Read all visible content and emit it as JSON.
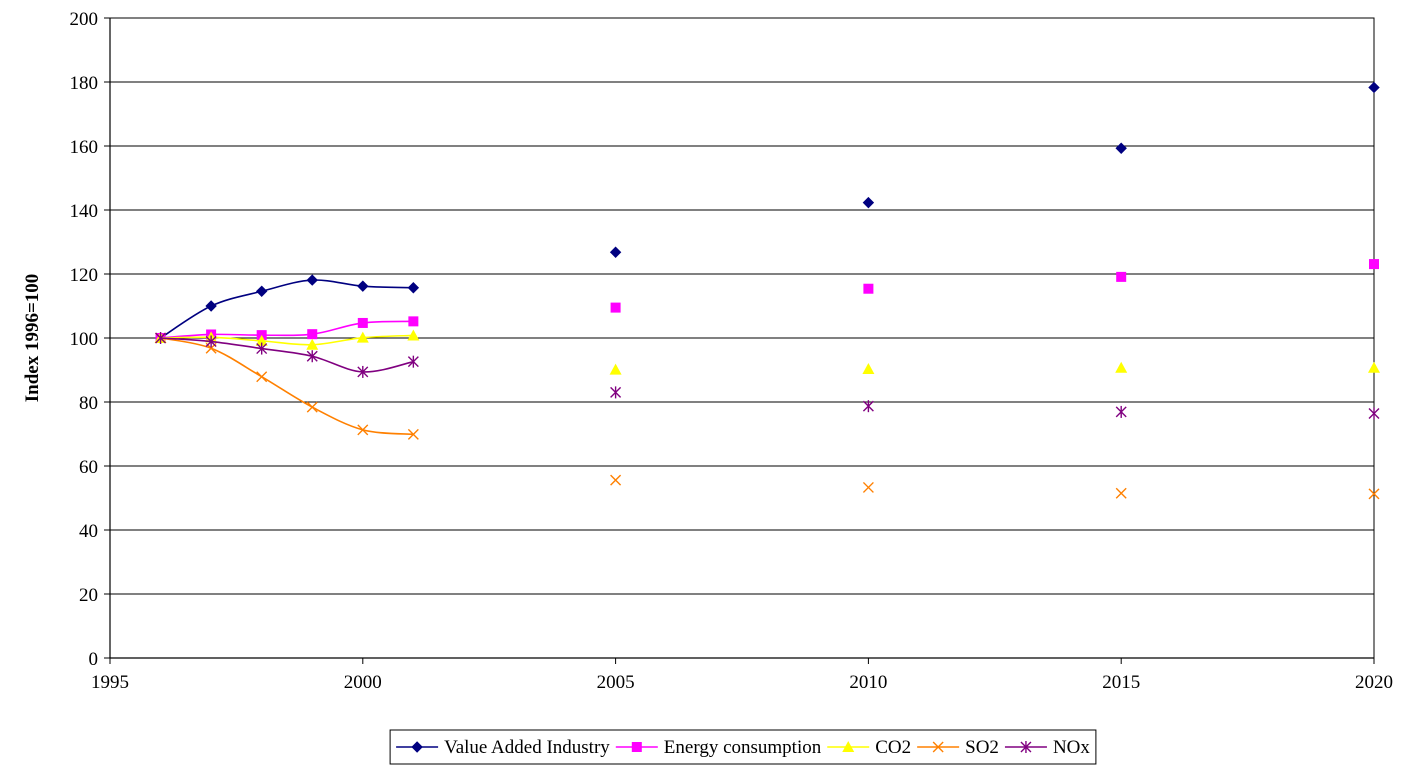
{
  "chart_data": {
    "type": "line",
    "title": "",
    "xlabel": "",
    "ylabel": "Index 1996=100",
    "xlim": [
      1995,
      2020
    ],
    "ylim": [
      0,
      200
    ],
    "x_ticks": [
      1995,
      2000,
      2005,
      2010,
      2015,
      2020
    ],
    "y_ticks": [
      0,
      20,
      40,
      60,
      80,
      100,
      120,
      140,
      160,
      180,
      200
    ],
    "grid": "horizontal",
    "legend_position": "bottom",
    "series": [
      {
        "name": "Value Added Industry",
        "color": "#000080",
        "marker": "diamond",
        "smooth": true,
        "line_points": [
          [
            1996,
            100
          ],
          [
            1997,
            110
          ],
          [
            1998,
            114.6
          ],
          [
            1999,
            118.1
          ],
          [
            2000,
            116.2
          ],
          [
            2001,
            115.7
          ]
        ],
        "marker_points": [
          [
            2005,
            126.8
          ],
          [
            2010,
            142.3
          ],
          [
            2015,
            159.3
          ],
          [
            2020,
            178.3
          ]
        ]
      },
      {
        "name": "Energy consumption",
        "color": "#ff00ff",
        "marker": "square",
        "smooth": true,
        "line_points": [
          [
            1996,
            100
          ],
          [
            1997,
            101.1
          ],
          [
            1998,
            100.9
          ],
          [
            1999,
            101.2
          ],
          [
            2000,
            104.7
          ],
          [
            2001,
            105.2
          ]
        ],
        "marker_points": [
          [
            2005,
            109.5
          ],
          [
            2010,
            115.4
          ],
          [
            2015,
            119.1
          ],
          [
            2020,
            123.1
          ]
        ]
      },
      {
        "name": "CO2",
        "color": "#ffff00",
        "marker": "triangle",
        "smooth": true,
        "line_points": [
          [
            1996,
            100
          ],
          [
            1997,
            100.2
          ],
          [
            1998,
            99.1
          ],
          [
            1999,
            97.9
          ],
          [
            2000,
            100.1
          ],
          [
            2001,
            100.8
          ]
        ],
        "marker_points": [
          [
            2005,
            90.1
          ],
          [
            2010,
            90.3
          ],
          [
            2015,
            90.7
          ],
          [
            2020,
            90.7
          ]
        ]
      },
      {
        "name": "SO2",
        "color": "#ff8000",
        "marker": "x",
        "smooth": true,
        "line_points": [
          [
            1996,
            100
          ],
          [
            1997,
            96.8
          ],
          [
            1998,
            87.9
          ],
          [
            1999,
            78.4
          ],
          [
            2000,
            71.3
          ],
          [
            2001,
            69.9
          ]
        ],
        "marker_points": [
          [
            2005,
            55.6
          ],
          [
            2010,
            53.3
          ],
          [
            2015,
            51.5
          ],
          [
            2020,
            51.3
          ]
        ]
      },
      {
        "name": "NOx",
        "color": "#800080",
        "marker": "star",
        "smooth": true,
        "line_points": [
          [
            1996,
            100
          ],
          [
            1997,
            98.9
          ],
          [
            1998,
            96.7
          ],
          [
            1999,
            94.3
          ],
          [
            2000,
            89.4
          ],
          [
            2001,
            92.6
          ]
        ],
        "marker_points": [
          [
            2005,
            83.0
          ],
          [
            2010,
            78.7
          ],
          [
            2015,
            76.9
          ],
          [
            2020,
            76.4
          ]
        ]
      }
    ]
  }
}
